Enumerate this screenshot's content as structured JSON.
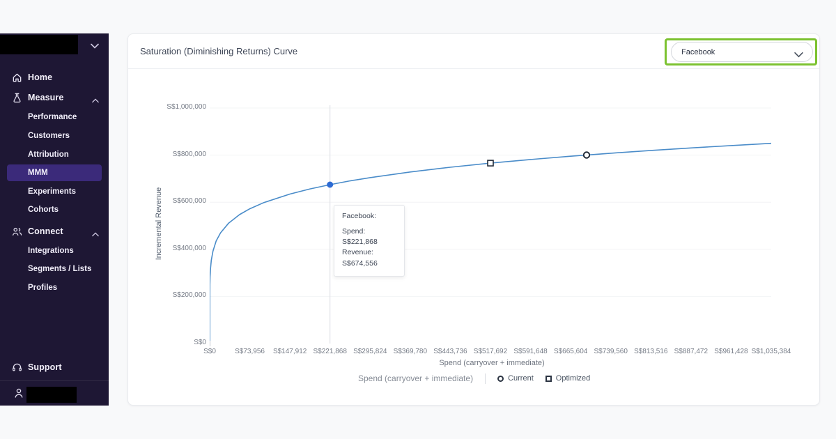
{
  "colors": {
    "sidebar_bg": "#1e1734",
    "sidebar_active_bg": "#3b2a7a",
    "curve_blue": "#4a8cc9",
    "highlight_dot_blue": "#2d6bd4",
    "annotation_green": "#7cc230",
    "grid_line": "#f3f4f6",
    "crosshair": "#dbdee3",
    "marker_outline": "#222b38"
  },
  "sidebar": {
    "logo": "redacted",
    "nav": [
      {
        "label": "Home",
        "icon": "home-icon"
      },
      {
        "label": "Measure",
        "icon": "flask-icon",
        "expanded": true
      },
      {
        "label": "Connect",
        "icon": "people-icon",
        "expanded": true
      }
    ],
    "measure_children": [
      "Performance",
      "Customers",
      "Attribution",
      "MMM",
      "Experiments",
      "Cohorts"
    ],
    "connect_children": [
      "Integrations",
      "Segments / Lists",
      "Profiles"
    ],
    "active_item": "MMM",
    "support_label": "Support",
    "account": "redacted"
  },
  "header": {
    "title": "Saturation (Diminishing Returns) Curve"
  },
  "channel_select": {
    "value": "Facebook",
    "highlighted": true
  },
  "tooltip": {
    "title": "Facebook:",
    "spend_line": "Spend: S$221,868",
    "revenue_line": "Revenue: S$674,556"
  },
  "chart_data": {
    "type": "line",
    "title": "Saturation (Diminishing Returns) Curve",
    "xlabel": "Spend (carryover + immediate)",
    "ylabel": "Incremental Revenue",
    "currency_prefix": "S$",
    "xlim": [
      0,
      1035384
    ],
    "ylim": [
      0,
      1000000
    ],
    "grid": "horizontal-faint",
    "x_ticks": [
      {
        "value": 0,
        "label": "S$0"
      },
      {
        "value": 73956,
        "label": "S$73,956"
      },
      {
        "value": 147912,
        "label": "S$147,912"
      },
      {
        "value": 221868,
        "label": "S$221,868"
      },
      {
        "value": 295824,
        "label": "S$295,824"
      },
      {
        "value": 369780,
        "label": "S$369,780"
      },
      {
        "value": 443736,
        "label": "S$443,736"
      },
      {
        "value": 517692,
        "label": "S$517,692"
      },
      {
        "value": 591648,
        "label": "S$591,648"
      },
      {
        "value": 665604,
        "label": "S$665,604"
      },
      {
        "value": 739560,
        "label": "S$739,560"
      },
      {
        "value": 813516,
        "label": "S$813,516"
      },
      {
        "value": 887472,
        "label": "S$887,472"
      },
      {
        "value": 961428,
        "label": "S$961,428"
      },
      {
        "value": 1035384,
        "label": "S$1,035,384"
      }
    ],
    "y_ticks": [
      {
        "value": 0,
        "label": "S$0"
      },
      {
        "value": 200000,
        "label": "S$200,000"
      },
      {
        "value": 400000,
        "label": "S$400,000"
      },
      {
        "value": 600000,
        "label": "S$600,000"
      },
      {
        "value": 800000,
        "label": "S$800,000"
      },
      {
        "value": 1000000,
        "label": "S$1,000,000"
      }
    ],
    "series": [
      {
        "name": "Facebook saturation curve",
        "color": "#4a8cc9",
        "points": [
          [
            0,
            0
          ],
          [
            100,
            212300
          ],
          [
            300,
            250300
          ],
          [
            700,
            284200
          ],
          [
            1500,
            318700
          ],
          [
            3000,
            353600
          ],
          [
            6000,
            392400
          ],
          [
            12000,
            435400
          ],
          [
            20000,
            470100
          ],
          [
            35000,
            511300
          ],
          [
            55000,
            547200
          ],
          [
            73956,
            572100
          ],
          [
            100000,
            598600
          ],
          [
            147912,
            634700
          ],
          [
            185000,
            656400
          ],
          [
            221868,
            674556
          ],
          [
            260000,
            691000
          ],
          [
            295824,
            704300
          ],
          [
            369780,
            728300
          ],
          [
            443736,
            748500
          ],
          [
            517692,
            766000
          ],
          [
            591648,
            781500
          ],
          [
            665604,
            795400
          ],
          [
            739560,
            808100
          ],
          [
            813516,
            819700
          ],
          [
            887472,
            830500
          ],
          [
            961428,
            840500
          ],
          [
            1035384,
            849900
          ]
        ]
      }
    ],
    "highlight_point": {
      "name": "Facebook",
      "spend": 221868,
      "revenue": 674556
    },
    "markers": [
      {
        "name": "Optimized",
        "shape": "square",
        "spend": 517692,
        "revenue": 766000
      },
      {
        "name": "Current",
        "shape": "circle",
        "spend": 694966,
        "revenue": 800300
      }
    ],
    "legend": [
      {
        "label": "Current",
        "marker": "circle"
      },
      {
        "label": "Optimized",
        "marker": "square"
      }
    ],
    "footer_axis_label": "Spend (carryover + immediate)"
  }
}
